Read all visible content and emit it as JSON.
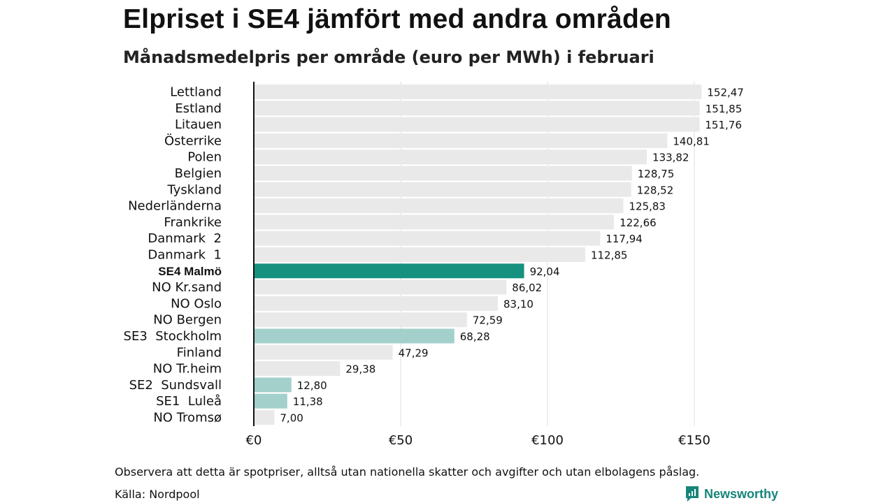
{
  "title": "Elpriset i SE4 jämfört med andra områden",
  "subtitle": "Månadsmedelpris per område (euro per MWh) i februari",
  "note": "Observera att detta är spotpriser, alltså utan nationella skatter och avgifter och utan elbolagens påslag.",
  "source": "Källa: Nordpool",
  "brand": "Newsworthy",
  "colors": {
    "default_bar": "#e9e9e9",
    "highlight_bar": "#16917f",
    "se_bar": "#a3d0ca",
    "grid": "#dddddd",
    "axis": "#111111",
    "brand": "#17857a"
  },
  "chart_data": {
    "type": "bar",
    "orientation": "horizontal",
    "categories": [
      "Lettland",
      "Estland",
      "Litauen",
      "Österrike",
      "Polen",
      "Belgien",
      "Tyskland",
      "Nederländerna",
      "Frankrike",
      "Danmark  2",
      "Danmark  1",
      "SE4 Malmö",
      "NO Kr.sand",
      "NO Oslo",
      "NO Bergen",
      "SE3  Stockholm",
      "Finland",
      "NO Tr.heim",
      "SE2  Sundsvall",
      "SE1  Luleå",
      "NO Tromsø"
    ],
    "values": [
      152.47,
      151.85,
      151.76,
      140.81,
      133.82,
      128.75,
      128.52,
      125.83,
      122.66,
      117.94,
      112.85,
      92.04,
      86.02,
      83.1,
      72.59,
      68.28,
      47.29,
      29.38,
      12.8,
      11.38,
      7.0
    ],
    "value_labels": [
      "152,47",
      "151,85",
      "151,76",
      "140,81",
      "133,82",
      "128,75",
      "128,52",
      "125,83",
      "122,66",
      "117,94",
      "112,85",
      "92,04",
      "86,02",
      "83,10",
      "72,59",
      "68,28",
      "47,29",
      "29,38",
      "12,80",
      "11,38",
      "7,00"
    ],
    "highlight": "SE4 Malmö",
    "secondary_highlight": [
      "SE3  Stockholm",
      "SE2  Sundsvall",
      "SE1  Luleå"
    ],
    "x_ticks": [
      0,
      50,
      100,
      150
    ],
    "x_tick_labels": [
      "€0",
      "€50",
      "€100",
      "€150"
    ],
    "xlim": [
      0,
      175
    ],
    "grid": true
  }
}
